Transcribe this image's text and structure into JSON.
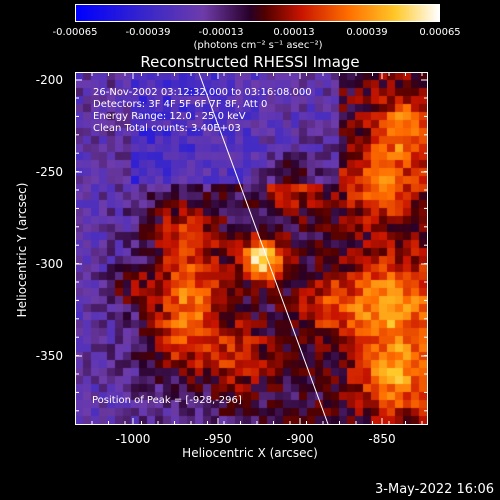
{
  "colorbar": {
    "ticks": [
      "-0.00065",
      "-0.00039",
      "-0.00013",
      "0.00013",
      "0.00039",
      "0.00065"
    ],
    "units": "(photons cm⁻² s⁻¹ asec⁻²)",
    "min": -0.00065,
    "max": 0.00065
  },
  "title": "Reconstructed RHESSI Image",
  "annotation": {
    "time": "26-Nov-2002 03:12:32.000 to 03:16:08.000",
    "detectors": "Detectors: 3F 4F 5F 6F 7F 8F, Att 0",
    "energy": "Energy Range: 12.0 - 25.0 keV",
    "clean": "Clean     Total counts: 3.40E+03",
    "peak": "Position of Peak = [-928,-296]"
  },
  "axes": {
    "xlabel": "Heliocentric X (arcsec)",
    "ylabel": "Heliocentric Y (arcsec)",
    "xticks": [
      "-1000",
      "-950",
      "-900",
      "-850"
    ],
    "yticks": [
      "-200",
      "-250",
      "-300",
      "-350"
    ]
  },
  "datestamp": "3-May-2022 16:06"
}
